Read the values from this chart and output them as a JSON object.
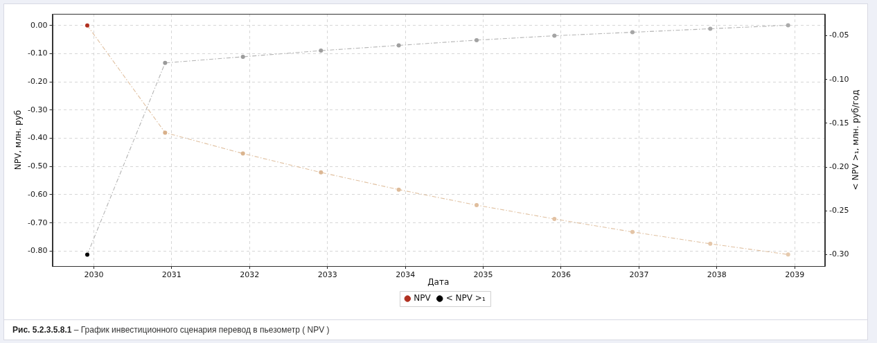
{
  "chart_data": {
    "type": "line",
    "xlabel": "Дата",
    "ylabel": "NPV, млн. руб",
    "y2label": "< NPV >₁, млн. руб/год",
    "x": [
      "2029-12-01",
      "2030-12-01",
      "2031-12-01",
      "2032-12-01",
      "2033-12-01",
      "2034-12-01",
      "2035-12-01",
      "2036-12-01",
      "2037-12-01",
      "2038-12-01"
    ],
    "series": [
      {
        "name": "NPV",
        "color": "#e0c0a0",
        "colors": [
          "#b03020",
          "#d8b08a",
          "#dab48f",
          "#dcb794",
          "#debb99",
          "#e0be9d",
          "#e2c1a2",
          "#e3c4a6",
          "#e5c7aa",
          "#e6caae"
        ],
        "values": [
          0.0,
          -0.38,
          -0.454,
          -0.521,
          -0.582,
          -0.637,
          -0.686,
          -0.732,
          -0.774,
          -0.812
        ]
      },
      {
        "name": "< NPV >₁",
        "color": "#b4b4b4",
        "axis": "y2",
        "colors": [
          "#000000",
          "#9a9a9a",
          "#9c9c9c",
          "#9e9e9e",
          "#a0a0a0",
          "#a2a2a2",
          "#a4a4a4",
          "#a6a6a6",
          "#a8a8a8",
          "#aaaaaa"
        ],
        "values": [
          -0.3,
          -0.081,
          -0.074,
          -0.067,
          -0.061,
          -0.055,
          -0.05,
          -0.046,
          -0.042,
          -0.038
        ]
      }
    ],
    "xlim": [
      "2029-06-20",
      "2039-05-20"
    ],
    "xticks": [
      "2030",
      "2031",
      "2032",
      "2033",
      "2034",
      "2035",
      "2036",
      "2037",
      "2038",
      "2039"
    ],
    "ylim": [
      -0.853,
      0.041
    ],
    "yticks": [
      {
        "value": -0.8,
        "label": "-0.80"
      },
      {
        "value": -0.7,
        "label": "-0.70"
      },
      {
        "value": -0.6,
        "label": "-0.60"
      },
      {
        "value": -0.5,
        "label": "-0.50"
      },
      {
        "value": -0.4,
        "label": "-0.40"
      },
      {
        "value": -0.3,
        "label": "-0.30"
      },
      {
        "value": -0.2,
        "label": "-0.20"
      },
      {
        "value": -0.1,
        "label": "-0.10"
      },
      {
        "value": 0,
        "label": "0.00"
      }
    ],
    "y2lim": [
      -0.313,
      -0.025
    ],
    "y2ticks": [
      {
        "value": -0.3,
        "label": "-0.30"
      },
      {
        "value": -0.25,
        "label": "-0.25"
      },
      {
        "value": -0.2,
        "label": "-0.20"
      },
      {
        "value": -0.15,
        "label": "-0.15"
      },
      {
        "value": -0.1,
        "label": "-0.10"
      },
      {
        "value": -0.05,
        "label": "-0.05"
      }
    ],
    "grid": true,
    "legend": "bottom",
    "marker": "circle",
    "line_style": "dashed",
    "annotations": [
      "Рис. 5.2.3.5.8.1",
      "– График инвестиционного сценария перевод в пьезометр ( NPV )"
    ]
  }
}
